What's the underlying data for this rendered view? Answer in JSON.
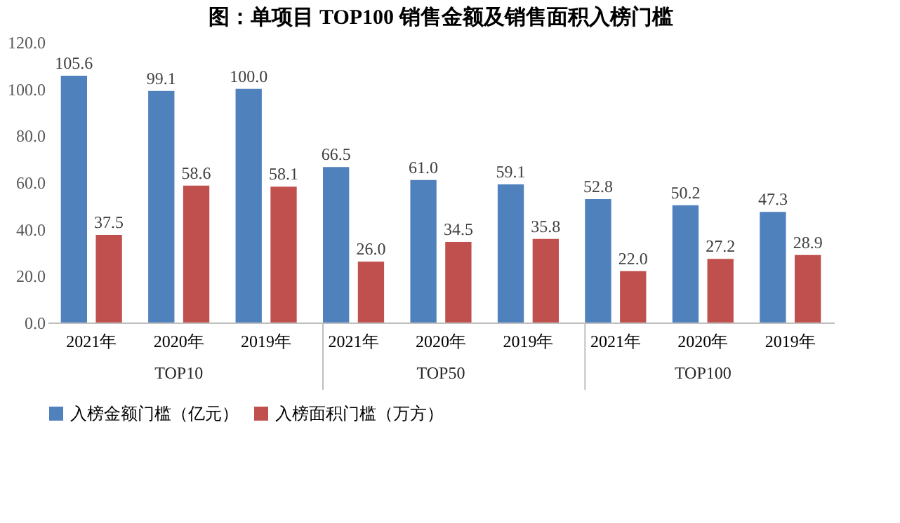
{
  "chart_data": {
    "type": "bar",
    "title": "图：单项目 TOP100 销售金额及销售面积入榜门槛",
    "categories": [
      "2021年",
      "2020年",
      "2019年",
      "2021年",
      "2020年",
      "2019年",
      "2021年",
      "2020年",
      "2019年"
    ],
    "series": [
      {
        "name": "入榜金额门槛（亿元）",
        "color": "#4f81bd",
        "values": [
          105.6,
          99.1,
          100.0,
          66.5,
          61.0,
          59.1,
          52.8,
          50.2,
          47.3
        ],
        "value_labels": [
          "105.6",
          "99.1",
          "100.0",
          "66.5",
          "61.0",
          "59.1",
          "52.8",
          "50.2",
          "47.3"
        ]
      },
      {
        "name": "入榜面积门槛（万方）",
        "color": "#c0504d",
        "values": [
          37.5,
          58.6,
          58.1,
          26.0,
          34.5,
          35.8,
          22.0,
          27.2,
          28.9
        ],
        "value_labels": [
          "37.5",
          "58.6",
          "58.1",
          "26.0",
          "34.5",
          "35.8",
          "22.0",
          "27.2",
          "28.9"
        ]
      }
    ],
    "ylim": [
      0,
      120
    ],
    "yticks": [
      {
        "value": 0,
        "label": "0.0"
      },
      {
        "value": 20,
        "label": "20.0"
      },
      {
        "value": 40,
        "label": "40.0"
      },
      {
        "value": 60,
        "label": "60.0"
      },
      {
        "value": 80,
        "label": "80.0"
      },
      {
        "value": 100,
        "label": "100.0"
      },
      {
        "value": 120,
        "label": "120.0"
      }
    ],
    "annotations": [
      "TOP10",
      "TOP50",
      "TOP100"
    ],
    "grid": false,
    "legend": "bottom"
  }
}
